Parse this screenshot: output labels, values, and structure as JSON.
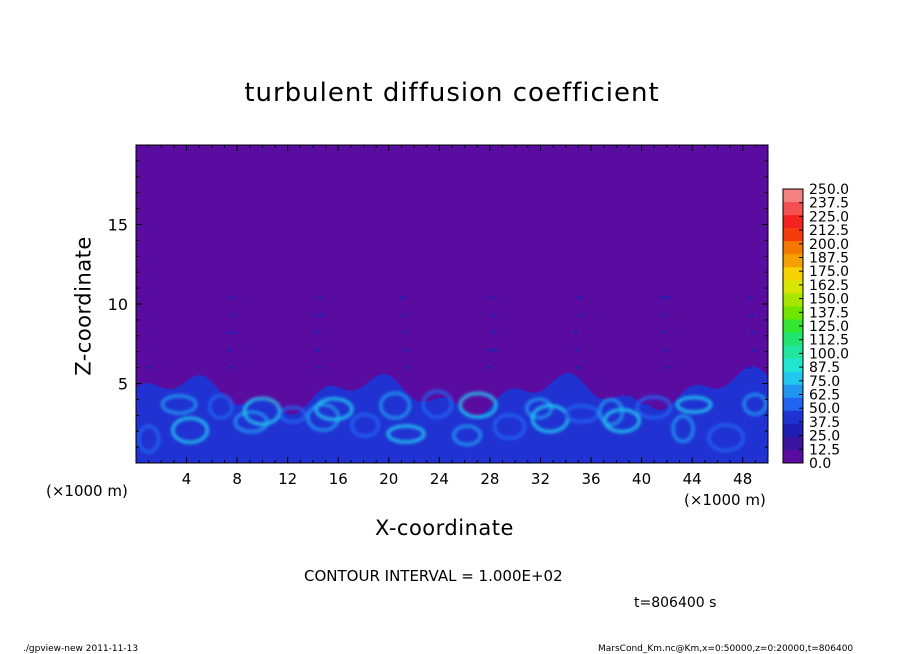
{
  "chart_data": {
    "type": "heatmap",
    "title": "turbulent diffusion coefficient",
    "xlabel": "X-coordinate",
    "ylabel": "Z-coordinate",
    "x_unit_label": "(×1000 m)",
    "x_range": [
      0,
      50
    ],
    "y_range": [
      0,
      20
    ],
    "x_ticks": [
      "4",
      "8",
      "12",
      "16",
      "20",
      "24",
      "28",
      "32",
      "36",
      "40",
      "44",
      "48"
    ],
    "y_ticks": [
      "5",
      "10",
      "15"
    ],
    "colorbar_labels": [
      "250.0",
      "237.5",
      "225.0",
      "212.5",
      "200.0",
      "187.5",
      "175.0",
      "162.5",
      "150.0",
      "137.5",
      "125.0",
      "112.5",
      "100.0",
      "87.5",
      "75.0",
      "62.5",
      "50.0",
      "37.5",
      "25.0",
      "12.5",
      "0.0"
    ],
    "colorbar_colors": [
      "#f58080",
      "#f55050",
      "#f52020",
      "#f53c0a",
      "#f57800",
      "#f5a000",
      "#f5d200",
      "#d7e600",
      "#a8e600",
      "#70e600",
      "#32e632",
      "#20e670",
      "#20e6a0",
      "#20e6d2",
      "#20c8f0",
      "#2096f0",
      "#2064f0",
      "#2032d2",
      "#1e1eb4",
      "#3c14a0",
      "#5a0ca0"
    ],
    "background_value_color": "#5a0ca0",
    "contour_interval_label": "CONTOUR INTERVAL = 1.000E+02",
    "time_label": "t=806400 s"
  },
  "footer": {
    "left": "./gpview-new  2011-11-13",
    "right": "MarsCond_Km.nc@Km,x=0:50000,z=0:20000,t=806400"
  }
}
